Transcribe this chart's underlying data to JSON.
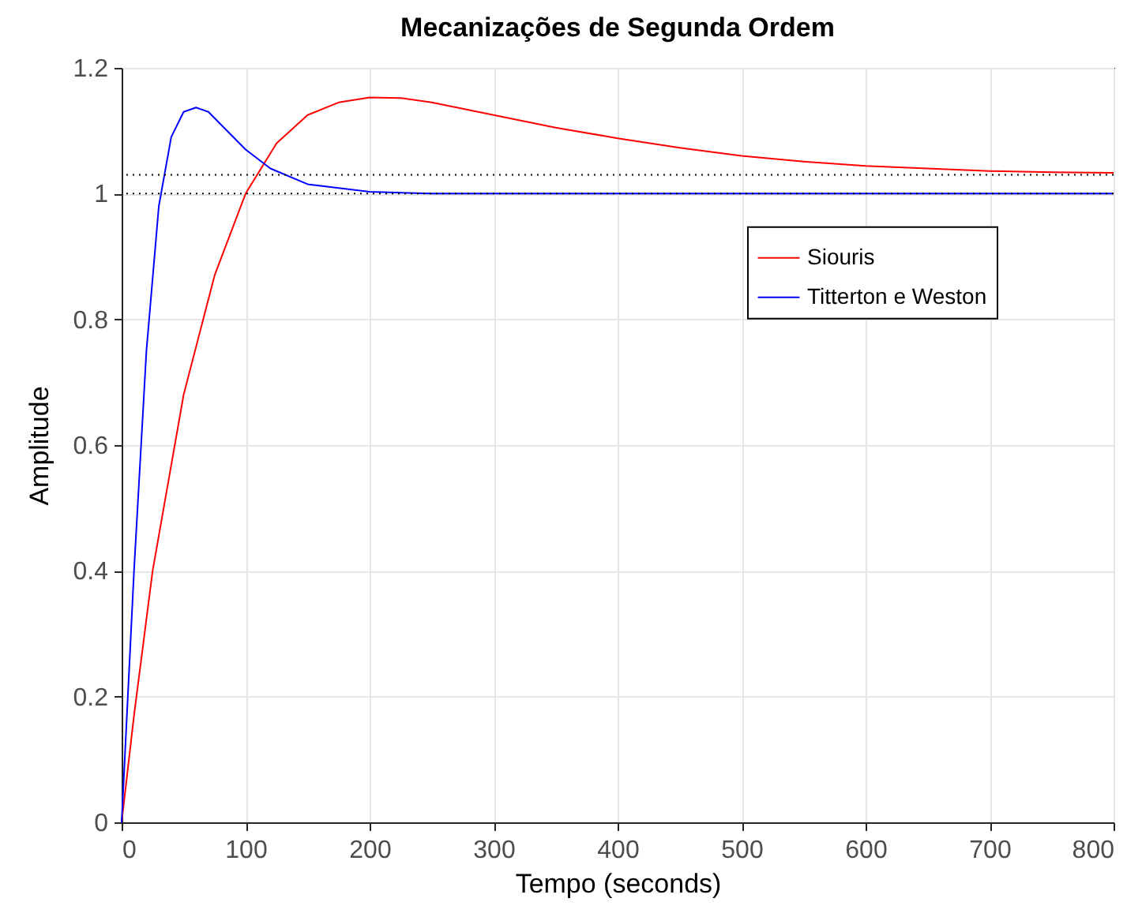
{
  "chart_data": {
    "type": "line",
    "title": "Mecanizações de Segunda Ordem",
    "xlabel": "Tempo (seconds)",
    "ylabel": "Amplitude",
    "series": [
      {
        "name": "Siouris",
        "color": "#ff0000",
        "x": [
          0,
          10,
          25,
          50,
          75,
          100,
          125,
          150,
          175,
          200,
          225,
          250,
          300,
          350,
          400,
          450,
          500,
          550,
          600,
          650,
          700,
          750,
          800
        ],
        "values": [
          0,
          0.17,
          0.4,
          0.68,
          0.87,
          1.0,
          1.08,
          1.125,
          1.145,
          1.153,
          1.152,
          1.145,
          1.125,
          1.105,
          1.088,
          1.073,
          1.06,
          1.051,
          1.044,
          1.04,
          1.036,
          1.034,
          1.033
        ]
      },
      {
        "name": "Titterton e Weston",
        "color": "#0000ff",
        "x": [
          0,
          10,
          20,
          30,
          40,
          50,
          60,
          70,
          80,
          100,
          120,
          150,
          200,
          250,
          300,
          400,
          500,
          600,
          700,
          800
        ],
        "values": [
          0,
          0.4,
          0.75,
          0.98,
          1.09,
          1.13,
          1.137,
          1.13,
          1.11,
          1.07,
          1.04,
          1.015,
          1.003,
          1.0,
          1.0,
          1.0,
          1.0,
          1.0,
          1.0,
          1.0
        ]
      }
    ],
    "ref_lines": [
      {
        "axis": "y",
        "value": 1.03,
        "color": "#000000",
        "line_style": "dotted"
      },
      {
        "axis": "y",
        "value": 1.0,
        "color": "#000000",
        "line_style": "dotted"
      }
    ],
    "xlim": [
      0,
      800
    ],
    "xticks": [
      0,
      100,
      200,
      300,
      400,
      500,
      600,
      700,
      800
    ],
    "ylim": [
      0,
      1.2
    ],
    "yticks": [
      0,
      0.2,
      0.4,
      0.6,
      0.8,
      1,
      1.2
    ],
    "grid": true,
    "legend": "top right"
  }
}
